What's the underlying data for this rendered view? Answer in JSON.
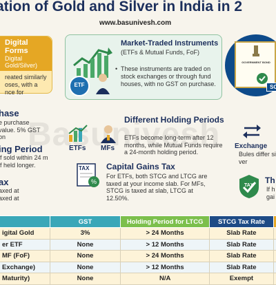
{
  "header": {
    "title": "ation of Gold and Silver in India in 2",
    "website": "www.basunivesh.com",
    "watermark": "Basunivesh"
  },
  "digital_card": {
    "title": "Digital Forms",
    "subtitle": "Digital Gold/Silver)",
    "body": "reated similarly oses, with a nce for"
  },
  "market_card": {
    "title": "Market-Traded Instruments",
    "subtitle": "(ETFs & Mutual Funds, FoF)",
    "body": "These instruments are traded on stock exchanges or through fund houses, with no GST on purchase.",
    "etf_icon_label": "ETF"
  },
  "bond_graphic": {
    "paper_label": "GOVERNMENT BOND",
    "tag": "SG"
  },
  "left_sections": [
    {
      "title": "hase",
      "text": "e purchase value. 5% GST on"
    },
    {
      "title": "ing Period",
      "text": "if sold within 24 m if held longer."
    },
    {
      "title": "ax",
      "text": "axed at axed at"
    }
  ],
  "holding": {
    "title": "Different Holding Periods",
    "text": "ETFs become long-term after 12 months, while Mutual Funds require a 24-month holding period.",
    "etfs_label": "ETFs",
    "mfs_label": "MFs"
  },
  "capital": {
    "title": "Capital Gains Tax",
    "text": "For ETFs, both STCG and LTCG are taxed at your income slab. For MFs, STCG is taxed at slab, LTCG at 12.50%.",
    "icon_text": "TAX"
  },
  "right_sections": {
    "exchange_title": "Exchange",
    "exchange_text": "Bules differ si ver",
    "tax_title": "Th",
    "tax_text": "If h gai",
    "shield_text": "TAX"
  },
  "table": {
    "headers": [
      "",
      "GST",
      "Holding Period for LTCG",
      "STCG Tax Rate",
      ""
    ],
    "rows": [
      [
        "igital Gold",
        "3%",
        "> 24 Months",
        "Slab Rate",
        ""
      ],
      [
        "er ETF",
        "None",
        "> 12 Months",
        "Slab Rate",
        ""
      ],
      [
        "MF (FoF)",
        "None",
        "> 24 Months",
        "Slab Rate",
        ""
      ],
      [
        "Exchange)",
        "None",
        "> 12 Months",
        "Slab Rate",
        ""
      ],
      [
        "Maturity)",
        "None",
        "N/A",
        "Exempt",
        ""
      ]
    ]
  },
  "colors": {
    "navy": "#1c2f5c",
    "gold": "#e5a724",
    "teal": "#3aa7b8",
    "green": "#7cbf4c"
  }
}
